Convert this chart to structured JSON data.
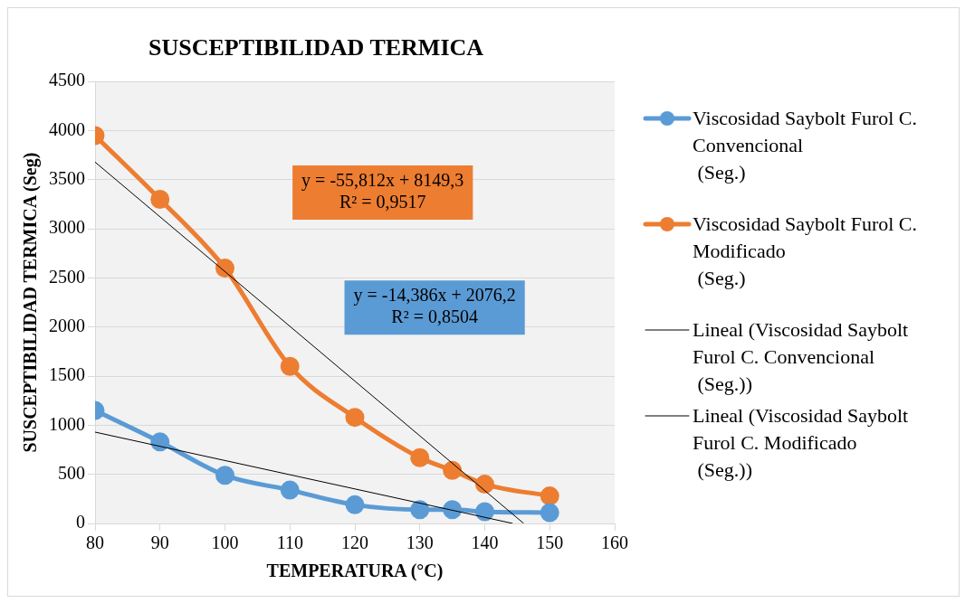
{
  "chart_data": {
    "type": "line",
    "title": "SUSCEPTIBILIDAD TERMICA",
    "xlabel": "TEMPERATURA (°C)",
    "ylabel": "SUSCEPTIBILIDAD TERMICA (Seg)",
    "x": [
      80,
      90,
      100,
      110,
      120,
      130,
      135,
      140,
      150
    ],
    "series": [
      {
        "name": "Viscosidad Saybolt Furol C. Convencional\n (Seg.)",
        "color": "#5b9bd5",
        "values": [
          1150,
          830,
          490,
          340,
          190,
          140,
          140,
          120,
          110
        ]
      },
      {
        "name": "Viscosidad Saybolt Furol C. Modificado\n (Seg.)",
        "color": "#ed7d31",
        "values": [
          3950,
          3300,
          2600,
          1600,
          1080,
          670,
          540,
          400,
          280
        ]
      },
      {
        "name": "Lineal (Viscosidad Saybolt Furol C. Convencional\n (Seg.))",
        "color": "#000000",
        "marker": "none",
        "x": [
          80,
          144.3
        ],
        "values": [
          930,
          0
        ]
      },
      {
        "name": "Lineal (Viscosidad Saybolt Furol C. Modificado\n (Seg.))",
        "color": "#000000",
        "marker": "none",
        "x": [
          80,
          146
        ],
        "values": [
          3680,
          0
        ]
      }
    ],
    "xlim": [
      80,
      160
    ],
    "xticks": [
      80,
      90,
      100,
      110,
      120,
      130,
      140,
      150,
      160
    ],
    "ylim": [
      0,
      4500
    ],
    "yticks": [
      0,
      500,
      1000,
      1500,
      2000,
      2500,
      3000,
      3500,
      4000,
      4500
    ],
    "grid": "y",
    "legend": "right",
    "marker": "circle",
    "annotations": [
      "y = -55,812x + 8149,3\nR² = 0,9517",
      "y = -14,386x + 2076,2\nR² = 0,8504"
    ]
  }
}
